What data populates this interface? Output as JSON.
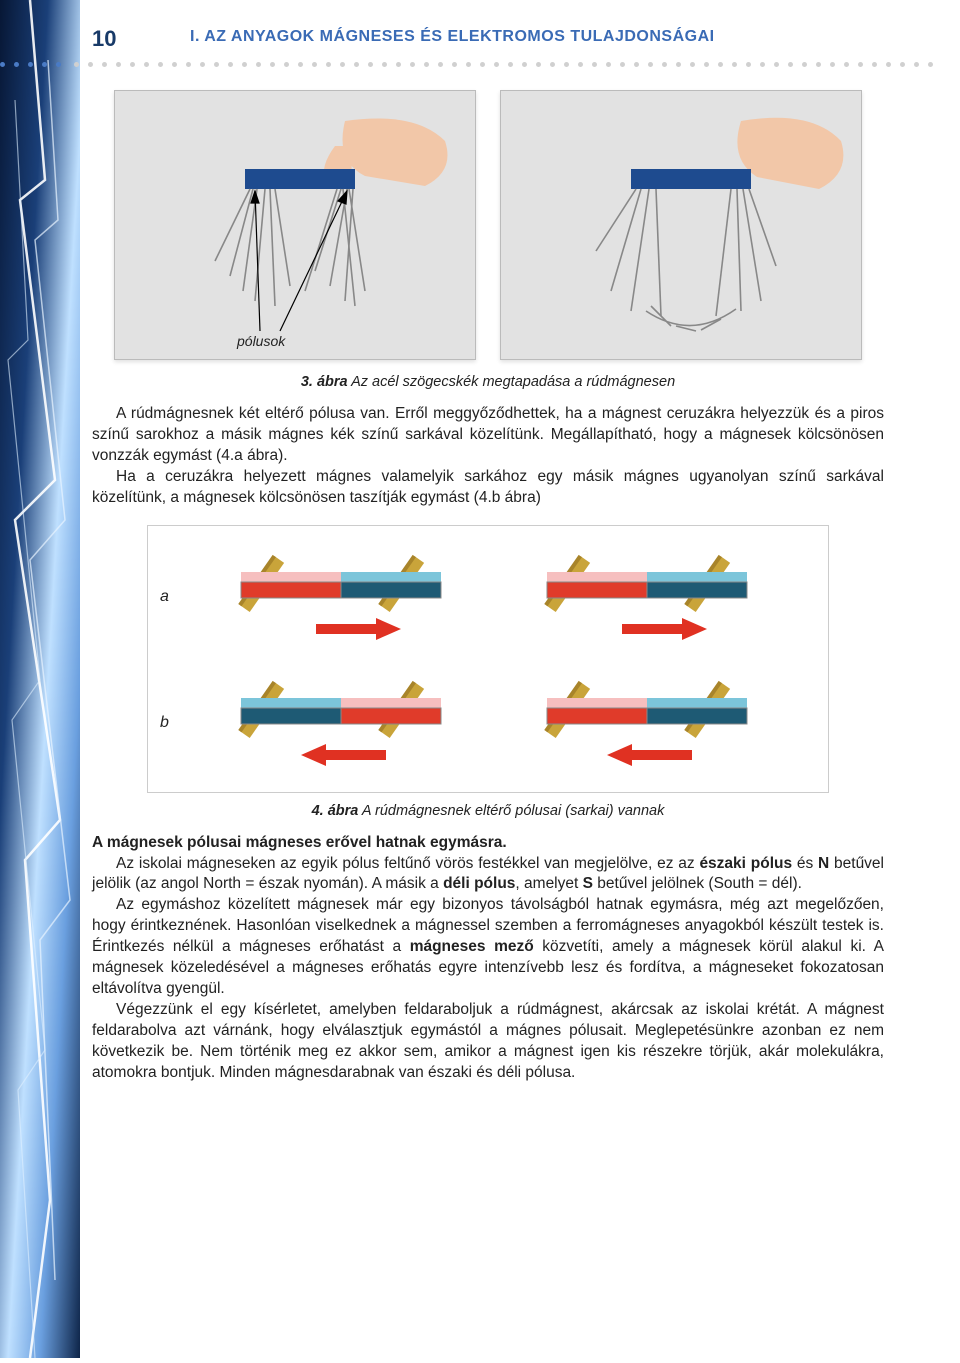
{
  "page_number": "10",
  "header_title": "I. AZ ANYAGOK MÁGNESES ÉS ELEKTROMOS TULAJDONSÁGAI",
  "photo": {
    "polusok_label": "pólusok"
  },
  "caption3_num": "3. ábra",
  "caption3_text": " Az acél szögecskék megtapadása a rúdmágnesen",
  "para1": "A rúdmágnesnek két eltérő pólusa van. Erről meggyőződhettek, ha a mágnest ceruzákra helyezzük és a piros színű sarokhoz a másik mágnes kék színű sarkával közelítünk. Megállapítható, hogy a mágnesek kölcsönösen vonzzák egymást (4.a ábra).",
  "para2": "Ha a ceruzákra helyezett mágnes valamelyik sarkához egy másik mágnes ugyanolyan színű sarkával közelítünk, a mágnesek kölcsönösen taszítják egymást (4.b ábra)",
  "diagram": {
    "row_a_label": "a",
    "row_b_label": "b",
    "colors": {
      "pencil": "#c9a43a",
      "pencil_shadow": "#a8842a",
      "bar_red_top": "#f6bfbf",
      "bar_red": "#e03b2a",
      "bar_blue": "#1e5a74",
      "bar_blue_top": "#7cc5da",
      "arrow": "#e03122",
      "outline": "#888888"
    }
  },
  "caption4_num": "4. ábra",
  "caption4_text": " A rúdmágnesnek eltérő pólusai (sarkai) vannak",
  "para3_bold": "A mágnesek pólusai mágneses erővel hatnak egymásra.",
  "para4_a": "Az iskolai mágneseken az egyik pólus feltűnő vörös festékkel van megjelölve, ez az ",
  "para4_b1": "északi pólus",
  "para4_c": " és ",
  "para4_b2": "N",
  "para4_d": " betűvel jelölik (az angol North = észak nyomán). A másik a ",
  "para4_b3": "déli pólus",
  "para4_e": ", amelyet ",
  "para4_b4": "S",
  "para4_f": " betűvel jelölnek (South = dél).",
  "para5_a": "Az egymáshoz közelített mágnesek már egy bizonyos távolságból hatnak egymásra, még azt megelőzően, hogy érintkeznének. Hasonlóan viselkednek a mágnessel szemben a ferromágneses anyagokból készült testek is. Érintkezés nélkül a mágneses erőhatást a ",
  "para5_b": "mágneses mező",
  "para5_c": " közvetíti, amely a mágnesek körül alakul ki. A mágnesek közeledésével a mágneses erőhatás egyre intenzívebb lesz és fordítva, a mágneseket fokozatosan eltávolítva gyengül.",
  "para6": "Végezzünk el egy kísérletet, amelyben feldaraboljuk a rúdmágnest, akárcsak az iskolai krétát. A mágnest feldarabolva azt várnánk, hogy elválasztjuk egymástól a mágnes pólusait. Meglepetésünkre azonban ez nem következik be. Nem történik meg ez akkor sem, amikor a mágnest igen kis részekre törjük, akár molekulákra, atomokra bontjuk. Minden mágnesdarabnak van északi és déli pólusa."
}
